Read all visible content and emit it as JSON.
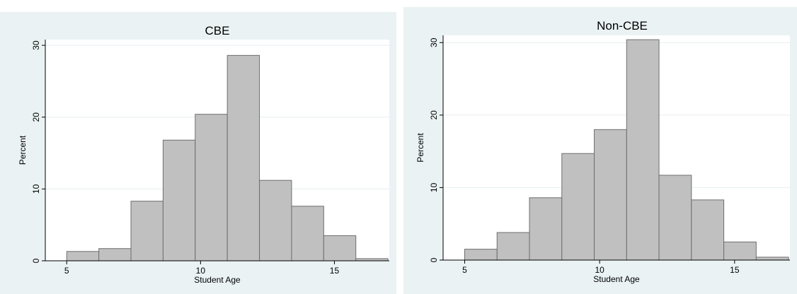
{
  "chart_data": [
    {
      "type": "bar",
      "title": "CBE",
      "xlabel": "Student Age",
      "ylabel": "Percent",
      "xlim": [
        4.2,
        17.05
      ],
      "ylim": [
        0,
        30.8
      ],
      "xticks": [
        5,
        10,
        15
      ],
      "yticks": [
        0,
        10,
        20,
        30
      ],
      "grid": true,
      "bin_edges": [
        5.0,
        6.2,
        7.4,
        8.6,
        9.8,
        11.0,
        12.2,
        13.4,
        14.6,
        15.8,
        17.0
      ],
      "values": [
        1.3,
        1.7,
        8.3,
        16.8,
        20.4,
        28.6,
        11.2,
        7.6,
        3.5,
        0.3
      ]
    },
    {
      "type": "bar",
      "title": "Non-CBE",
      "xlabel": "Student Age",
      "ylabel": "Percent",
      "xlim": [
        4.2,
        17.05
      ],
      "ylim": [
        0,
        31.0
      ],
      "xticks": [
        5,
        10,
        15
      ],
      "yticks": [
        0,
        10,
        20,
        30
      ],
      "grid": true,
      "bin_edges": [
        5.0,
        6.2,
        7.4,
        8.6,
        9.8,
        11.0,
        12.2,
        13.4,
        14.6,
        15.8,
        17.0
      ],
      "values": [
        1.5,
        3.8,
        8.6,
        14.7,
        18.0,
        30.4,
        11.7,
        8.3,
        2.5,
        0.4
      ]
    }
  ]
}
